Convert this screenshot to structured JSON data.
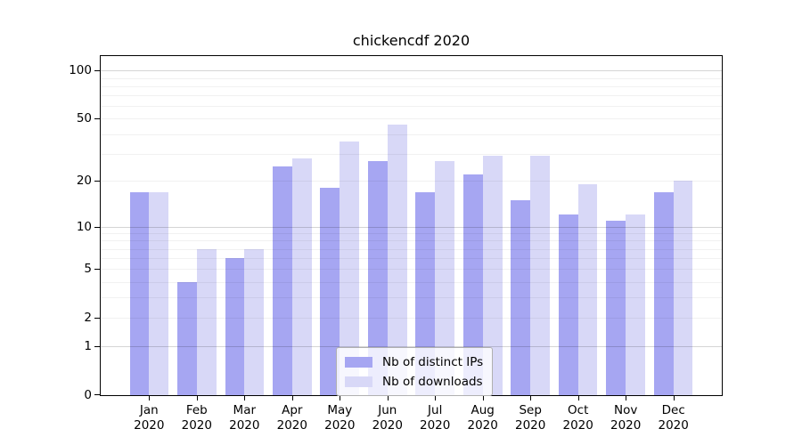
{
  "title": "chickencdf 2020",
  "chart_data": {
    "type": "bar",
    "title": "chickencdf 2020",
    "months": [
      "Jan",
      "Feb",
      "Mar",
      "Apr",
      "May",
      "Jun",
      "Jul",
      "Aug",
      "Sep",
      "Oct",
      "Nov",
      "Dec"
    ],
    "year_label": "2020",
    "categories": [
      "Jan 2020",
      "Feb 2020",
      "Mar 2020",
      "Apr 2020",
      "May 2020",
      "Jun 2020",
      "Jul 2020",
      "Aug 2020",
      "Sep 2020",
      "Oct 2020",
      "Nov 2020",
      "Dec 2020"
    ],
    "series": [
      {
        "name": "Nb of distinct IPs",
        "color": "#a6a6f2",
        "values": [
          17,
          4,
          6,
          25,
          18,
          27,
          17,
          22,
          15,
          12,
          11,
          17
        ]
      },
      {
        "name": "Nb of downloads",
        "color": "#d8d8f7",
        "values": [
          17,
          7,
          7,
          28,
          36,
          46,
          27,
          29,
          29,
          19,
          12,
          20
        ]
      }
    ],
    "xlabel": "",
    "ylabel": "",
    "y_scale": "log1p",
    "ylim": [
      0,
      123
    ],
    "y_tick_values": [
      0,
      1,
      2,
      5,
      10,
      20,
      50,
      100
    ],
    "y_major_gridlines": [
      1,
      10,
      100
    ],
    "y_minor_gridlines": [
      2,
      3,
      4,
      5,
      6,
      7,
      8,
      9,
      20,
      30,
      40,
      50,
      60,
      70,
      80,
      90
    ],
    "grid": true,
    "legend_position": "lower center"
  },
  "colors": {
    "bar_distinct_ips": "#a6a6f2",
    "bar_downloads": "#d8d8f7",
    "spine": "#000000",
    "grid_major": "#d6d6d6",
    "grid_minor": "#f1f1f1",
    "background": "#ffffff"
  }
}
